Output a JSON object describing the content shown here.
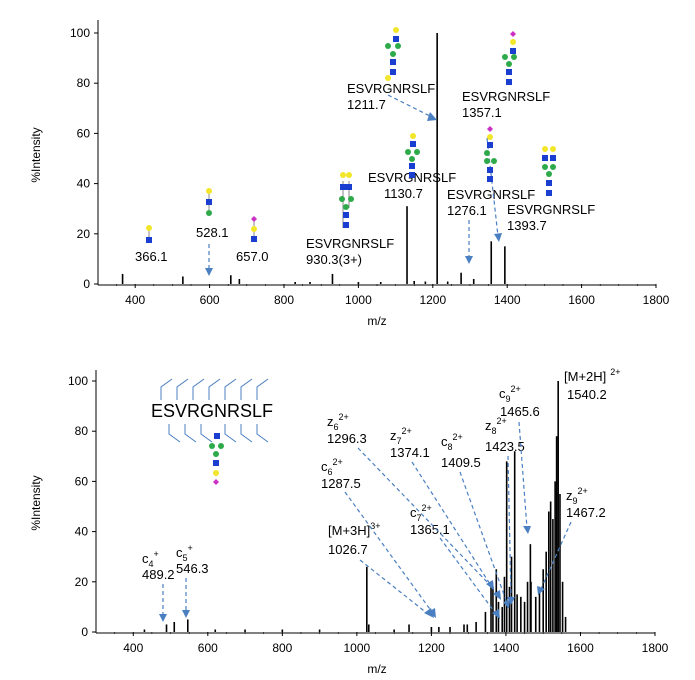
{
  "chart_data": [
    {
      "type": "bar",
      "panel": "top",
      "xlabel": "m/z",
      "ylabel": "%Intensity",
      "xlim": [
        300,
        1800
      ],
      "ylim": [
        0,
        100
      ],
      "xticks": [
        400,
        600,
        800,
        1000,
        1200,
        1400,
        1600,
        1800
      ],
      "yticks": [
        0,
        20,
        40,
        60,
        80,
        100
      ],
      "grid": false,
      "peaks": [
        {
          "x": 366.1,
          "y": 4
        },
        {
          "x": 528.1,
          "y": 3
        },
        {
          "x": 657.0,
          "y": 3.5
        },
        {
          "x": 680,
          "y": 2
        },
        {
          "x": 930.3,
          "y": 4
        },
        {
          "x": 1130.7,
          "y": 31
        },
        {
          "x": 1211.7,
          "y": 100
        },
        {
          "x": 1276.1,
          "y": 4.5
        },
        {
          "x": 1310,
          "y": 2
        },
        {
          "x": 1357.1,
          "y": 17
        },
        {
          "x": 1393.7,
          "y": 15
        },
        {
          "x": 830,
          "y": 0.8
        },
        {
          "x": 870,
          "y": 0.8
        },
        {
          "x": 1000,
          "y": 0.8
        },
        {
          "x": 1060,
          "y": 0.8
        },
        {
          "x": 1150,
          "y": 1.2
        },
        {
          "x": 1180,
          "y": 1
        },
        {
          "x": 1240,
          "y": 1
        }
      ],
      "annotations": [
        {
          "lines": [
            "366.1"
          ]
        },
        {
          "lines": [
            "528.1"
          ]
        },
        {
          "lines": [
            "657.0"
          ]
        },
        {
          "lines": [
            "ESVRGNRSLF",
            "930.3(3+)"
          ]
        },
        {
          "lines": [
            "ESVRGNRSLF",
            "1130.7"
          ]
        },
        {
          "lines": [
            "ESVRGNRSLF",
            "1211.7"
          ]
        },
        {
          "lines": [
            "ESVRGNRSLF",
            "1357.1"
          ]
        },
        {
          "lines": [
            "ESVRGNRSLF",
            "1276.1"
          ]
        },
        {
          "lines": [
            "ESVRGNRSLF",
            "1393.7"
          ]
        }
      ]
    },
    {
      "type": "bar",
      "panel": "bottom",
      "xlabel": "m/z",
      "ylabel": "%Intensity",
      "xlim": [
        300,
        1800
      ],
      "ylim": [
        0,
        100
      ],
      "xticks": [
        400,
        600,
        800,
        1000,
        1200,
        1400,
        1600,
        1800
      ],
      "yticks": [
        0,
        20,
        40,
        60,
        80,
        100
      ],
      "grid": false,
      "sequence": "ESVRGNRSLF",
      "peaks": [
        {
          "x": 489.2,
          "y": 3
        },
        {
          "x": 510,
          "y": 4
        },
        {
          "x": 546.3,
          "y": 5
        },
        {
          "x": 1026.7,
          "y": 26
        },
        {
          "x": 1032,
          "y": 3
        },
        {
          "x": 1140,
          "y": 3
        },
        {
          "x": 1287.5,
          "y": 3
        },
        {
          "x": 1296.3,
          "y": 3
        },
        {
          "x": 1320,
          "y": 4
        },
        {
          "x": 1345,
          "y": 8
        },
        {
          "x": 1360,
          "y": 20
        },
        {
          "x": 1365.1,
          "y": 18
        },
        {
          "x": 1374.1,
          "y": 25
        },
        {
          "x": 1380,
          "y": 12
        },
        {
          "x": 1390,
          "y": 10
        },
        {
          "x": 1396,
          "y": 22
        },
        {
          "x": 1402,
          "y": 68
        },
        {
          "x": 1409.5,
          "y": 18
        },
        {
          "x": 1415,
          "y": 30
        },
        {
          "x": 1423.5,
          "y": 72
        },
        {
          "x": 1430,
          "y": 15
        },
        {
          "x": 1440,
          "y": 14
        },
        {
          "x": 1450,
          "y": 12
        },
        {
          "x": 1458,
          "y": 20
        },
        {
          "x": 1465.6,
          "y": 35
        },
        {
          "x": 1467.2,
          "y": 20
        },
        {
          "x": 1480,
          "y": 14
        },
        {
          "x": 1490,
          "y": 18
        },
        {
          "x": 1500,
          "y": 25
        },
        {
          "x": 1508,
          "y": 32
        },
        {
          "x": 1515,
          "y": 48
        },
        {
          "x": 1520,
          "y": 52
        },
        {
          "x": 1526,
          "y": 45
        },
        {
          "x": 1532,
          "y": 60
        },
        {
          "x": 1536,
          "y": 78
        },
        {
          "x": 1540.2,
          "y": 100
        },
        {
          "x": 1545,
          "y": 55
        },
        {
          "x": 1552,
          "y": 20
        },
        {
          "x": 1560,
          "y": 6
        },
        {
          "x": 1200,
          "y": 2
        },
        {
          "x": 1220,
          "y": 2
        },
        {
          "x": 1250,
          "y": 2
        },
        {
          "x": 620,
          "y": 1
        },
        {
          "x": 700,
          "y": 1
        },
        {
          "x": 800,
          "y": 1
        },
        {
          "x": 900,
          "y": 1
        },
        {
          "x": 1100,
          "y": 1
        },
        {
          "x": 430,
          "y": 1
        }
      ],
      "annotations": [
        {
          "ion": "c",
          "sub": "4",
          "sup": "+",
          "value": "489.2"
        },
        {
          "ion": "c",
          "sub": "5",
          "sup": "+",
          "value": "546.3"
        },
        {
          "ion": "[M+3H]",
          "sub": "",
          "sup": "3+",
          "value": "1026.7"
        },
        {
          "ion": "z",
          "sub": "6",
          "sup": "2+",
          "value": "1296.3"
        },
        {
          "ion": "c",
          "sub": "6",
          "sup": "2+",
          "value": "1287.5"
        },
        {
          "ion": "z",
          "sub": "7",
          "sup": "2+",
          "value": "1374.1"
        },
        {
          "ion": "c",
          "sub": "7",
          "sup": "2+",
          "value": "1365.1"
        },
        {
          "ion": "c",
          "sub": "8",
          "sup": "2+",
          "value": "1409.5"
        },
        {
          "ion": "z",
          "sub": "8",
          "sup": "2+",
          "value": "1423.5"
        },
        {
          "ion": "c",
          "sub": "9",
          "sup": "2+",
          "value": "1465.6"
        },
        {
          "ion": "[M+2H]",
          "sub": "",
          "sup": "2+",
          "value": "1540.2"
        },
        {
          "ion": "z",
          "sub": "9",
          "sup": "2+",
          "value": "1467.2"
        }
      ]
    }
  ],
  "colors": {
    "hexnac": "#1a3fd0",
    "hexose_galactose": "#f2e62a",
    "mannose": "#2eaa4a",
    "sialic_acid": "#cc2fc4",
    "arrow": "#4a7fc1"
  }
}
